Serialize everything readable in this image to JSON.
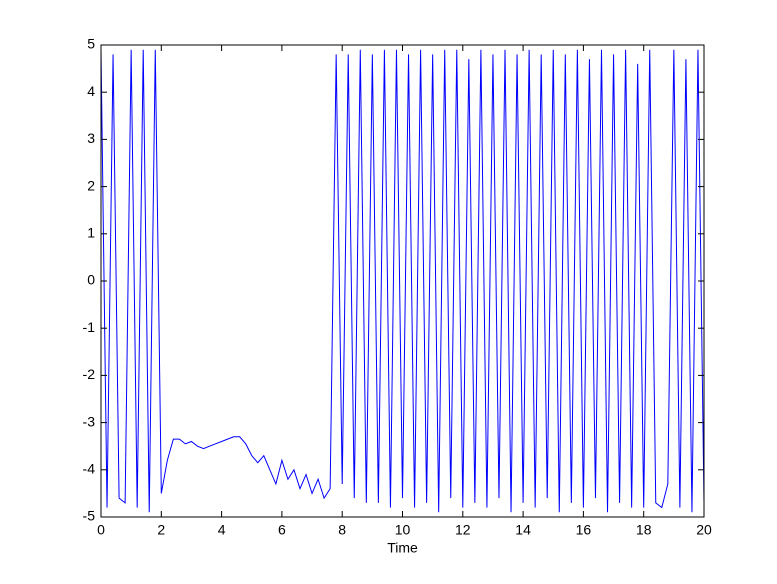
{
  "chart_data": {
    "type": "line",
    "xlabel": "Time",
    "color": "#0000ff",
    "x": [
      0,
      0.2,
      0.4,
      0.6,
      0.8,
      1,
      1.2,
      1.4,
      1.6,
      1.8,
      2,
      2.2,
      2.4,
      2.6,
      2.8,
      3,
      3.2,
      3.4,
      3.6,
      3.8,
      4,
      4.2,
      4.4,
      4.6,
      4.8,
      5,
      5.2,
      5.4,
      5.6,
      5.8,
      6,
      6.2,
      6.4,
      6.6,
      6.8,
      7,
      7.2,
      7.4,
      7.6,
      7.8,
      8,
      8.2,
      8.4,
      8.6,
      8.8,
      9,
      9.2,
      9.4,
      9.6,
      9.8,
      10,
      10.2,
      10.4,
      10.6,
      10.8,
      11,
      11.2,
      11.4,
      11.6,
      11.8,
      12,
      12.2,
      12.4,
      12.6,
      12.8,
      13,
      13.2,
      13.4,
      13.6,
      13.8,
      14,
      14.2,
      14.4,
      14.6,
      14.8,
      15,
      15.2,
      15.4,
      15.6,
      15.8,
      16,
      16.2,
      16.4,
      16.6,
      16.8,
      17,
      17.2,
      17.4,
      17.6,
      17.8,
      18,
      18.2,
      18.4,
      18.6,
      18.8,
      19,
      19.2,
      19.4,
      19.6,
      19.8,
      20
    ],
    "values": [
      4.9,
      -4.8,
      4.8,
      -4.6,
      -4.7,
      4.9,
      -4.8,
      4.9,
      -4.9,
      4.9,
      -4.5,
      -3.8,
      -3.35,
      -3.35,
      -3.45,
      -3.4,
      -3.5,
      -3.55,
      -3.5,
      -3.45,
      -3.4,
      -3.35,
      -3.3,
      -3.3,
      -3.45,
      -3.7,
      -3.85,
      -3.7,
      -4.0,
      -4.3,
      -3.8,
      -4.2,
      -4.0,
      -4.4,
      -4.1,
      -4.5,
      -4.2,
      -4.6,
      -4.4,
      4.8,
      -4.3,
      4.8,
      -4.6,
      4.9,
      -4.7,
      4.8,
      -4.7,
      4.9,
      -4.8,
      4.9,
      -4.6,
      4.8,
      -4.8,
      4.9,
      -4.7,
      4.8,
      -4.9,
      4.9,
      -4.6,
      4.9,
      -4.8,
      4.7,
      -4.7,
      4.9,
      -4.8,
      4.8,
      -4.6,
      4.9,
      -4.9,
      4.8,
      -4.7,
      4.9,
      -4.8,
      4.8,
      -4.6,
      4.9,
      -4.9,
      4.8,
      -4.7,
      4.9,
      -4.8,
      4.7,
      -4.6,
      4.9,
      -4.9,
      4.8,
      -4.7,
      4.9,
      -4.8,
      4.6,
      -4.8,
      4.9,
      -4.7,
      -4.8,
      -4.3,
      4.9,
      -4.8,
      4.7,
      -4.9,
      4.9,
      -4.7
    ],
    "xlim": [
      0,
      20
    ],
    "xticks": [
      0,
      2,
      4,
      6,
      8,
      10,
      12,
      14,
      16,
      18,
      20
    ],
    "ylim": [
      -5,
      5
    ],
    "yticks": [
      -5,
      -4,
      -3,
      -2,
      -1,
      0,
      1,
      2,
      3,
      4,
      5
    ]
  }
}
